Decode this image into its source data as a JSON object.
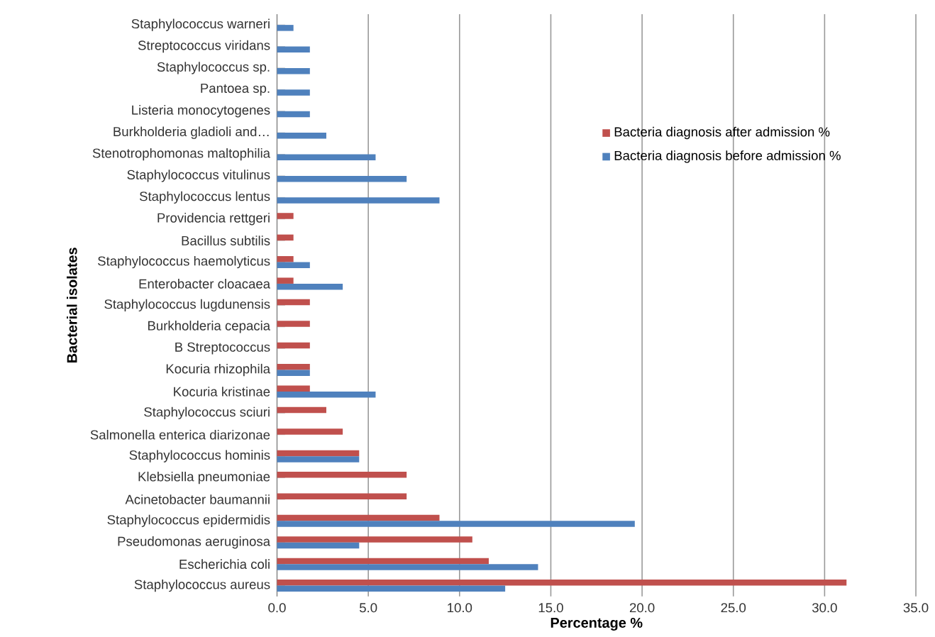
{
  "chart_data": {
    "type": "bar",
    "orientation": "horizontal",
    "xlabel": "Percentage %",
    "ylabel": "Bacterial isolates",
    "categories": [
      "Staphylococcus warneri",
      "Streptococcus viridans",
      "Staphylococcus sp.",
      "Pantoea sp.",
      "Listeria monocytogenes",
      "Burkholderia gladioli and…",
      "Stenotrophomonas maltophilia",
      "Staphylococcus vitulinus",
      "Staphylococcus lentus",
      "Providencia rettgeri",
      "Bacillus subtilis",
      "Staphylococcus haemolyticus",
      "Enterobacter cloacaea",
      "Staphylococcus lugdunensis",
      "Burkholderia cepacia",
      "B Streptococcus",
      "Kocuria rhizophila",
      "Kocuria kristinae",
      "Staphylococcus sciuri",
      "Salmonella enterica diarizonae",
      "Staphylococcus hominis",
      "Klebsiella pneumoniae",
      "Acinetobacter baumannii",
      "Staphylococcus epidermidis",
      "Pseudomonas aeruginosa",
      "Escherichia coli",
      "Staphylococcus aureus"
    ],
    "series": [
      {
        "name": "Bacteria diagnosis after admission %",
        "color": "#c0504d",
        "values": [
          null,
          null,
          null,
          null,
          null,
          null,
          null,
          null,
          null,
          0.9,
          0.9,
          0.9,
          0.9,
          1.8,
          1.8,
          1.8,
          1.8,
          1.8,
          2.7,
          3.6,
          4.5,
          7.1,
          7.1,
          8.9,
          10.7,
          11.6,
          31.2
        ]
      },
      {
        "name": "Bacteria diagnosis before admission %",
        "color": "#4f81bd",
        "values": [
          0.9,
          1.8,
          1.8,
          1.8,
          1.8,
          2.7,
          5.4,
          7.1,
          8.9,
          null,
          null,
          1.8,
          3.6,
          null,
          null,
          null,
          1.8,
          5.4,
          null,
          null,
          4.5,
          null,
          null,
          19.6,
          4.5,
          14.3,
          12.5
        ]
      }
    ],
    "xlim": [
      0,
      35
    ],
    "xticks": [
      {
        "value": 0,
        "label": "0.0"
      },
      {
        "value": 5,
        "label": "5.0"
      },
      {
        "value": 10,
        "label": "10.0"
      },
      {
        "value": 15,
        "label": "15.0"
      },
      {
        "value": 20,
        "label": "20.0"
      },
      {
        "value": 25,
        "label": "25.0"
      },
      {
        "value": 30,
        "label": "30.0"
      },
      {
        "value": 35,
        "label": "35.0"
      }
    ],
    "grid": "x",
    "legend": "top right"
  }
}
